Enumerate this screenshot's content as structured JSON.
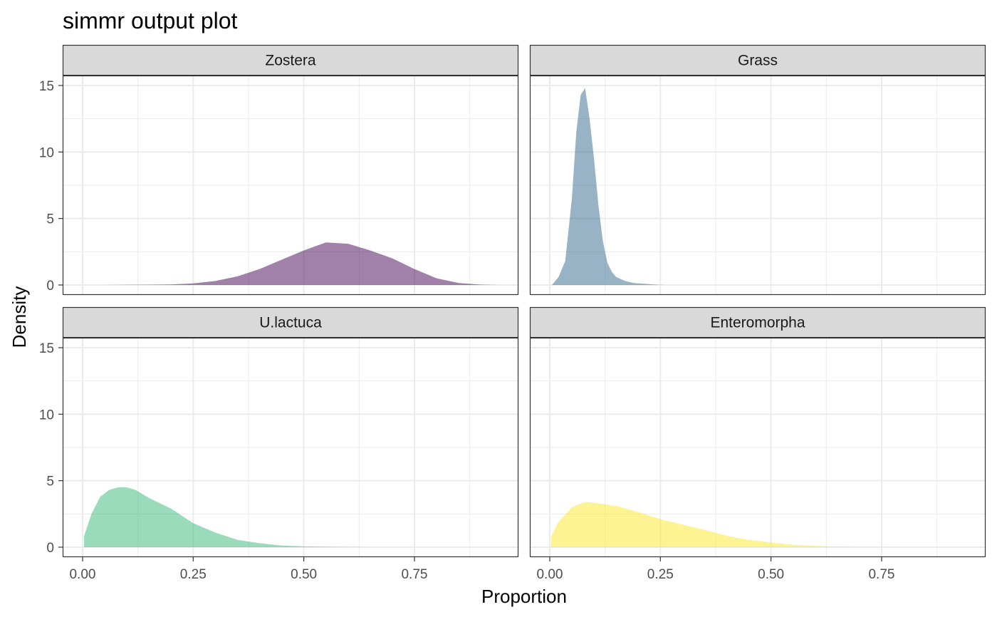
{
  "chart_data": {
    "type": "area",
    "title": "simmr output plot",
    "xlabel": "Proportion",
    "ylabel": "Density",
    "xlim": [
      -0.045,
      0.985
    ],
    "ylim": [
      -0.75,
      15.75
    ],
    "x_ticks": [
      0.0,
      0.25,
      0.5,
      0.75
    ],
    "x_tick_labels": [
      "0.00",
      "0.25",
      "0.50",
      "0.75"
    ],
    "y_ticks": [
      0,
      5,
      10,
      15
    ],
    "y_tick_labels": [
      "0",
      "5",
      "10",
      "15"
    ],
    "grid": true,
    "legend": "none",
    "facets": [
      {
        "name": "Zostera",
        "color": "#440154",
        "x": [
          0.0,
          0.05,
          0.1,
          0.15,
          0.2,
          0.25,
          0.3,
          0.35,
          0.4,
          0.45,
          0.5,
          0.55,
          0.6,
          0.65,
          0.7,
          0.75,
          0.8,
          0.85,
          0.9,
          0.94
        ],
        "y": [
          0.0,
          0.0,
          0.01,
          0.02,
          0.04,
          0.12,
          0.3,
          0.65,
          1.2,
          1.9,
          2.6,
          3.2,
          3.1,
          2.6,
          2.0,
          1.2,
          0.5,
          0.15,
          0.03,
          0.0
        ]
      },
      {
        "name": "Grass",
        "color": "#31688E",
        "x": [
          0.005,
          0.02,
          0.035,
          0.05,
          0.06,
          0.07,
          0.08,
          0.09,
          0.1,
          0.11,
          0.12,
          0.13,
          0.14,
          0.15,
          0.17,
          0.19,
          0.21,
          0.24,
          0.26
        ],
        "y": [
          0.0,
          0.6,
          1.8,
          6.5,
          11.5,
          14.3,
          14.8,
          12.5,
          9.5,
          6.0,
          3.3,
          1.7,
          1.0,
          0.6,
          0.3,
          0.15,
          0.1,
          0.03,
          0.0
        ]
      },
      {
        "name": "U.lactuca",
        "color": "#35B779",
        "x": [
          0.003,
          0.02,
          0.04,
          0.06,
          0.08,
          0.1,
          0.12,
          0.15,
          0.2,
          0.25,
          0.3,
          0.35,
          0.4,
          0.45,
          0.5,
          0.55,
          0.6,
          0.65
        ],
        "y": [
          0.8,
          2.5,
          3.8,
          4.3,
          4.5,
          4.5,
          4.3,
          3.7,
          2.9,
          1.8,
          1.1,
          0.55,
          0.3,
          0.12,
          0.06,
          0.03,
          0.01,
          0.0
        ]
      },
      {
        "name": "Enteromorpha",
        "color": "#FDE725",
        "x": [
          0.003,
          0.02,
          0.05,
          0.08,
          0.1,
          0.15,
          0.2,
          0.25,
          0.3,
          0.35,
          0.4,
          0.45,
          0.5,
          0.55,
          0.6,
          0.65,
          0.7,
          0.75,
          0.8
        ],
        "y": [
          0.8,
          1.9,
          3.0,
          3.4,
          3.35,
          3.1,
          2.65,
          2.1,
          1.7,
          1.3,
          0.85,
          0.55,
          0.35,
          0.18,
          0.1,
          0.05,
          0.02,
          0.01,
          0.0
        ]
      }
    ]
  }
}
